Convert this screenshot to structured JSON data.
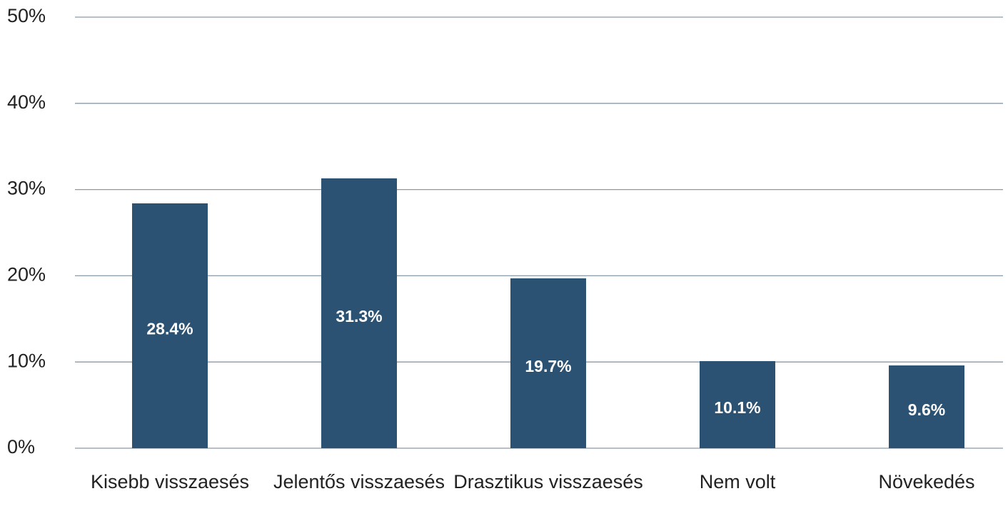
{
  "chart_data": {
    "type": "bar",
    "categories": [
      "Kisebb visszaesés",
      "Jelentős visszaesés",
      "Drasztikus visszaesés",
      "Nem volt",
      "Növekedés"
    ],
    "values": [
      28.4,
      31.3,
      19.7,
      10.1,
      9.6
    ],
    "value_labels": [
      "28.4%",
      "31.3%",
      "19.7%",
      "10.1%",
      "9.6%"
    ],
    "color": "#2b5272",
    "ylim": [
      0,
      50
    ],
    "yticks": [
      {
        "value": 0,
        "label": "0%"
      },
      {
        "value": 10,
        "label": "10%"
      },
      {
        "value": 20,
        "label": "20%"
      },
      {
        "value": 30,
        "label": "30%"
      },
      {
        "value": 40,
        "label": "40%"
      },
      {
        "value": 50,
        "label": "50%"
      }
    ],
    "grid": true
  }
}
